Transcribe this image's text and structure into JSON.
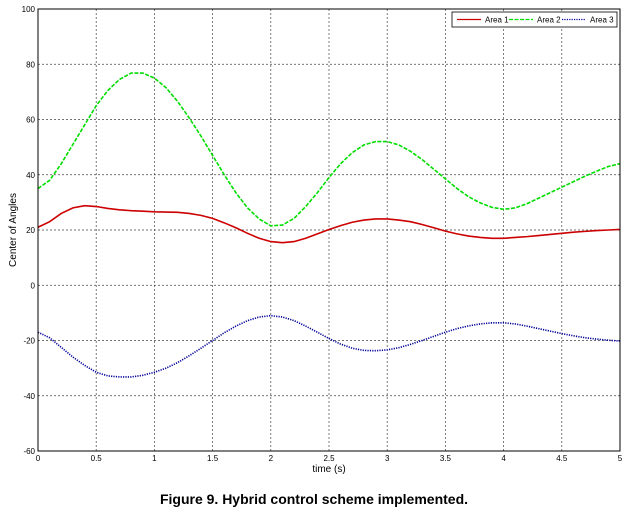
{
  "caption": "Figure 9. Hybrid control scheme implemented.",
  "chart_data": {
    "type": "line",
    "xlabel": "time (s)",
    "ylabel": "Center of Angles",
    "xlim": [
      0,
      5
    ],
    "ylim": [
      -60,
      100
    ],
    "xticks": [
      "0",
      "0.5",
      "1",
      "1.5",
      "2",
      "2.5",
      "3",
      "3.5",
      "4",
      "4.5",
      "5"
    ],
    "yticks": [
      "-60",
      "-40",
      "-20",
      "0",
      "20",
      "40",
      "60",
      "80",
      "100"
    ],
    "grid": true,
    "legend_position": "top-right",
    "x": [
      0,
      0.1,
      0.2,
      0.3,
      0.4,
      0.5,
      0.6,
      0.7,
      0.8,
      0.9,
      1.0,
      1.1,
      1.2,
      1.3,
      1.4,
      1.5,
      1.6,
      1.7,
      1.8,
      1.9,
      2.0,
      2.1,
      2.2,
      2.3,
      2.4,
      2.5,
      2.6,
      2.7,
      2.8,
      2.9,
      3.0,
      3.1,
      3.2,
      3.3,
      3.4,
      3.5,
      3.6,
      3.7,
      3.8,
      3.9,
      4.0,
      4.1,
      4.2,
      4.3,
      4.4,
      4.5,
      4.6,
      4.7,
      4.8,
      4.9,
      5.0
    ],
    "series": [
      {
        "name": "Area 1",
        "color": "#cc0000",
        "style": "solid",
        "values": [
          21,
          23,
          26,
          28,
          28.8,
          28.5,
          27.8,
          27.3,
          27,
          26.8,
          26.6,
          26.5,
          26.4,
          26,
          25.3,
          24.2,
          22.6,
          20.8,
          18.8,
          17,
          15.8,
          15.4,
          15.8,
          17,
          18.6,
          20.2,
          21.6,
          22.8,
          23.6,
          24,
          24,
          23.6,
          23,
          22,
          20.8,
          19.6,
          18.6,
          17.8,
          17.3,
          17,
          17,
          17.3,
          17.6,
          18,
          18.4,
          18.8,
          19.2,
          19.5,
          19.8,
          20,
          20.2
        ]
      },
      {
        "name": "Area 2",
        "color": "#00dd00",
        "style": "dashed",
        "values": [
          35,
          38,
          44,
          51,
          58,
          65,
          70.5,
          74.5,
          76.8,
          76.8,
          75,
          71.5,
          66.5,
          60.5,
          54,
          47,
          40,
          33.5,
          28,
          24,
          21.5,
          21.8,
          24.2,
          28.5,
          33.5,
          39,
          44,
          48,
          50.8,
          52,
          52,
          50.8,
          48.5,
          45.5,
          42,
          38.5,
          35,
          32,
          29.8,
          28.2,
          27.5,
          28,
          29.5,
          31.5,
          33.5,
          35.5,
          37.5,
          39.5,
          41.3,
          43,
          44
        ]
      },
      {
        "name": "Area 3",
        "color": "#000099",
        "style": "dotted",
        "values": [
          -17,
          -19,
          -22.5,
          -26,
          -29,
          -31.5,
          -32.8,
          -33.2,
          -33.2,
          -32.6,
          -31.5,
          -30,
          -28,
          -25.5,
          -22.8,
          -20,
          -17.2,
          -14.8,
          -12.8,
          -11.5,
          -11,
          -11.5,
          -12.8,
          -14.8,
          -17,
          -19.3,
          -21.3,
          -22.8,
          -23.6,
          -23.7,
          -23.4,
          -22.6,
          -21.4,
          -20,
          -18.5,
          -17,
          -15.7,
          -14.7,
          -14,
          -13.6,
          -13.6,
          -14,
          -14.8,
          -15.7,
          -16.6,
          -17.5,
          -18.3,
          -19,
          -19.5,
          -19.9,
          -20.2
        ]
      }
    ]
  }
}
